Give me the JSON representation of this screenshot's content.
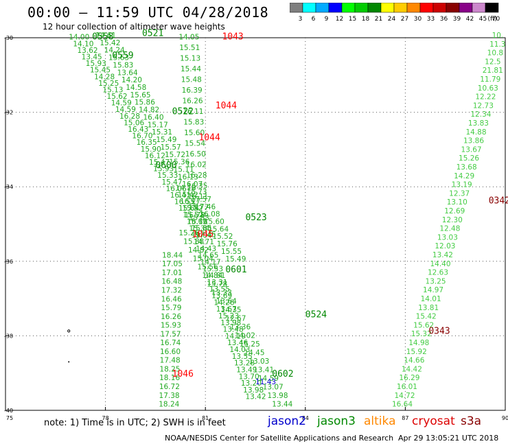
{
  "title": "00:00 – 11:59 UTC 04/28/2018",
  "subtitle": "12 hour collection of altimeter wave heights",
  "colorbar": {
    "unit": "(ft)",
    "bins": [
      {
        "label": "3",
        "color": "#7f7f7f"
      },
      {
        "label": "6",
        "color": "#00ffff"
      },
      {
        "label": "9",
        "color": "#00aaff"
      },
      {
        "label": "12",
        "color": "#0000ff"
      },
      {
        "label": "15",
        "color": "#00ff00"
      },
      {
        "label": "18",
        "color": "#00cc00"
      },
      {
        "label": "21",
        "color": "#008800"
      },
      {
        "label": "24",
        "color": "#ffff00"
      },
      {
        "label": "27",
        "color": "#ffcc00"
      },
      {
        "label": "30",
        "color": "#ff8800"
      },
      {
        "label": "33",
        "color": "#ff0000"
      },
      {
        "label": "36",
        "color": "#cc0000"
      },
      {
        "label": "39",
        "color": "#880000"
      },
      {
        "label": "42",
        "color": "#880088"
      },
      {
        "label": "45",
        "color": "#cc88cc"
      },
      {
        "label": "70",
        "color": "#000000"
      }
    ]
  },
  "note": "note:  1) Time is in UTC;  2) SWH is in feet",
  "satellites": [
    {
      "name": "jason2",
      "color": "#0000cc"
    },
    {
      "name": "jason3",
      "color": "#008800"
    },
    {
      "name": "altika",
      "color": "#ff8800"
    },
    {
      "name": "cryosat",
      "color": "#dd0000"
    },
    {
      "name": "s3a",
      "color": "#880000"
    }
  ],
  "footer": "NOAA/NESDIS Center for Satellite Applications and Research",
  "timestamp": "Apr 29 13:05:21 UTC 2018",
  "chart_data": {
    "type": "scatter",
    "xlim": [
      75,
      90
    ],
    "ylim": [
      -40,
      -30
    ],
    "xticks": [
      "75",
      "78",
      "81",
      "84",
      "87",
      "90"
    ],
    "yticks": [
      "-30",
      "-32",
      "-34",
      "-36",
      "-38",
      "-40"
    ],
    "grid": true,
    "time_labels": [
      {
        "text": "0558",
        "lon": 77.6,
        "lat": -30.05,
        "color": "#008800"
      },
      {
        "text": "0521",
        "lon": 79.1,
        "lat": -29.95,
        "color": "#008800"
      },
      {
        "text": "1043",
        "lon": 81.5,
        "lat": -30.05,
        "color": "#ff0000"
      },
      {
        "text": "0559",
        "lon": 78.2,
        "lat": -30.55,
        "color": "#008800"
      },
      {
        "text": "1044",
        "lon": 81.3,
        "lat": -31.9,
        "color": "#ff0000"
      },
      {
        "text": "0522",
        "lon": 80.0,
        "lat": -32.05,
        "color": "#008800"
      },
      {
        "text": "1044",
        "lon": 80.8,
        "lat": -32.75,
        "color": "#ff0000"
      },
      {
        "text": "0600",
        "lon": 79.5,
        "lat": -33.5,
        "color": "#008800"
      },
      {
        "text": "0342",
        "lon": 89.5,
        "lat": -34.45,
        "color": "#880000"
      },
      {
        "text": "0523",
        "lon": 82.2,
        "lat": -34.9,
        "color": "#008800"
      },
      {
        "text": "1045",
        "lon": 80.6,
        "lat": -35.35,
        "color": "#ff0000"
      },
      {
        "text": "0601",
        "lon": 81.6,
        "lat": -36.3,
        "color": "#008800"
      },
      {
        "text": "0524",
        "lon": 84.0,
        "lat": -37.5,
        "color": "#008800"
      },
      {
        "text": "0343",
        "lon": 87.7,
        "lat": -37.95,
        "color": "#880000"
      },
      {
        "text": "1046",
        "lon": 80.0,
        "lat": -39.1,
        "color": "#ff0000"
      },
      {
        "text": "0602",
        "lon": 83.0,
        "lat": -39.1,
        "color": "#008800"
      }
    ],
    "tracks": [
      {
        "name": "jason3",
        "color": "#22aa22",
        "lon_start": 76.9,
        "lat_start": -30.05,
        "lon_end": 80.7,
        "lat_end": -35.35,
        "values": [
          "14.00",
          "14.10",
          "13.62",
          "13.45",
          "15.93",
          "15.45",
          "14.28",
          "15.25",
          "15.13",
          "15.62",
          "14.59",
          "14.59",
          "16.28",
          "15.06",
          "16.43",
          "16.70",
          "16.35",
          "15.90",
          "16.12",
          "15.47",
          "15.93",
          "15.33",
          "15.47",
          "16.06",
          "16.41",
          "16.55",
          "15.64",
          "15.52",
          "16.16",
          "15.85",
          "17.45"
        ]
      },
      {
        "name": "jason3",
        "color": "#22aa22",
        "lon_start": 77.7,
        "lat_start": -30.0,
        "lon_end": 81.6,
        "lat_end": -36.0,
        "values": [
          "14.61",
          "15.42",
          "14.24",
          "15.63",
          "15.83",
          "13.64",
          "14.20",
          "14.58",
          "15.65",
          "15.86",
          "14.82",
          "16.40",
          "15.17",
          "15.31",
          "15.49",
          "15.57",
          "15.72",
          "15.36",
          "15.11",
          "16.13",
          "16.07",
          "15.73",
          "17.57",
          "17.46",
          "16.08",
          "15.60",
          "15.64",
          "15.52",
          "15.76",
          "15.55",
          "15.49"
        ]
      },
      {
        "name": "jason3",
        "color": "#22aa22",
        "lon_start": 80.2,
        "lat_start": -30.05,
        "lon_end": 80.5,
        "lat_end": -34.9,
        "values": [
          "14.05",
          "15.51",
          "15.13",
          "15.44",
          "15.48",
          "16.39",
          "16.26",
          "16.11",
          "15.83",
          "15.60",
          "15.54",
          "16.50",
          "16.02",
          "16.28",
          "16.35",
          "16.11",
          "15.77",
          "15.83"
        ]
      },
      {
        "name": "jason3",
        "color": "#22aa22",
        "lon_start": 80.1,
        "lat_start": -34.1,
        "lon_end": 82.2,
        "lat_end": -39.7,
        "values": [
          "14.16",
          "15.42",
          "16.27",
          "15.52",
          "15.78",
          "15.62",
          "15.34",
          "19.04",
          "14.71",
          "14.43",
          "14.65",
          "14.17",
          "15.53",
          "14.81",
          "13.31",
          "13.55",
          "13.69",
          "14.26",
          "13.67",
          "15.23",
          "13.98",
          "13.48",
          "14.19",
          "13.46",
          "14.03",
          "13.55",
          "13.28",
          "13.49",
          "13.70",
          "13.20",
          "13.98",
          "13.42"
        ]
      },
      {
        "name": "jason3",
        "color": "#22aa22",
        "lon_start": 80.2,
        "lat_start": -35.3,
        "lon_end": 83.0,
        "lat_end": -39.9,
        "values": [
          "15.26",
          "15.88",
          "14.82",
          "15.04",
          "15.56",
          "14.84",
          "15.78",
          "13.33",
          "13.64",
          "14.35",
          "12.67",
          "13.36",
          "14.02",
          "15.25",
          "14.45",
          "13.03",
          "13.41",
          "14.59",
          "13.07",
          "13.98",
          "13.44"
        ]
      },
      {
        "name": "jason3",
        "color": "#22aa22",
        "lon_start": 79.7,
        "lat_start": -35.9,
        "lon_end": 79.6,
        "lat_end": -39.9,
        "values": [
          "18.44",
          "17.05",
          "17.01",
          "16.48",
          "17.32",
          "16.46",
          "15.79",
          "16.26",
          "15.93",
          "17.57",
          "16.74",
          "16.60",
          "17.48",
          "18.25",
          "18.16",
          "16.72",
          "17.38",
          "18.24"
        ]
      },
      {
        "name": "jason3",
        "color": "#44cc44",
        "lon_start": 89.6,
        "lat_start": -30.0,
        "lon_end": 86.6,
        "lat_end": -39.9,
        "values": [
          "10.",
          "11.3",
          "10.8",
          "12.5",
          "21.81",
          "11.79",
          "10.63",
          "12.22",
          "12.73",
          "12.34",
          "13.83",
          "14.88",
          "13.86",
          "13.67",
          "15.26",
          "13.68",
          "14.29",
          "13.19",
          "12.37",
          "13.10",
          "12.69",
          "12.30",
          "12.48",
          "13.03",
          "12.03",
          "13.42",
          "14.40",
          "12.63",
          "13.25",
          "14.97",
          "14.01",
          "13.81",
          "15.42",
          "15.62",
          "15.32",
          "14.98",
          "15.92",
          "14.66",
          "14.42",
          "16.29",
          "16.01",
          "14.72",
          "16.64"
        ]
      }
    ],
    "single_values": [
      {
        "text": "11.43",
        "lon": 82.5,
        "lat": -39.3,
        "color": "#0000cc"
      }
    ]
  }
}
